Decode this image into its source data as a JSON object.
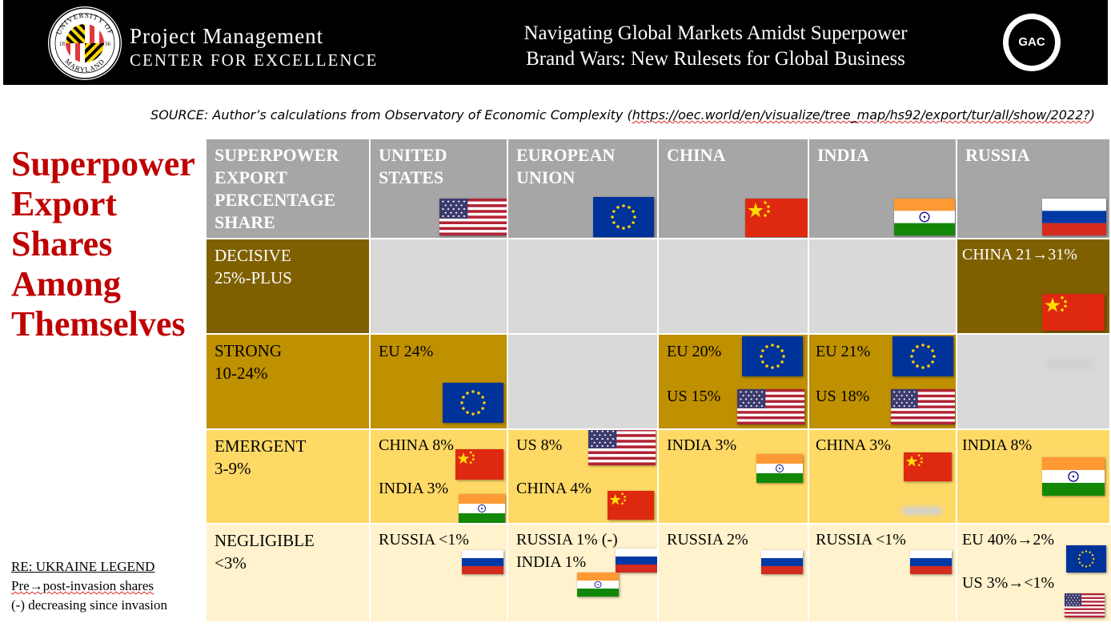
{
  "header": {
    "seal": {
      "top_text": "UNIVERSITY OF",
      "bottom_text": "MARYLAND",
      "year_left": "18",
      "year_right": "56"
    },
    "org_line1": "Project Management",
    "org_line2": "CENTER FOR EXCELLENCE",
    "title_line1": "Navigating Global Markets Amidst Superpower",
    "title_line2": "Brand Wars: New Rulesets for Global Business",
    "badge_text": "GAC",
    "colors": {
      "bar": "#000000",
      "text": "#ffffff"
    }
  },
  "source": {
    "prefix": "SOURCE: Author’s calculations from Observatory of Economic Complexity (",
    "url": "https://oec.world/en/visualize/tree_map/hs92/export/tur/all/show/2022?",
    "suffix": ")"
  },
  "side_title": {
    "lines": [
      "Superpower",
      "Export",
      "Shares",
      "Among",
      "Themselves"
    ],
    "color": "#c00000"
  },
  "legend": {
    "heading": "RE: UKRAINE LEGEND",
    "line1": "Pre→post-invasion shares",
    "line2": "(-) decreasing since invasion"
  },
  "table": {
    "corner_header": "SUPERPOWER EXPORT PERCENTAGE SHARE",
    "columns": [
      {
        "label": "UNITED STATES",
        "flag": "us-flag-icon"
      },
      {
        "label": "EUROPEAN UNION",
        "flag": "eu-flag-icon"
      },
      {
        "label": "CHINA",
        "flag": "china-flag-icon"
      },
      {
        "label": "INDIA",
        "flag": "india-flag-icon"
      },
      {
        "label": "RUSSIA",
        "flag": "russia-flag-icon"
      }
    ],
    "rows": [
      {
        "line1": "DECISIVE",
        "line2": "25%-PLUS",
        "color": "#7f6000",
        "text_color": "#ffffff"
      },
      {
        "line1": "STRONG",
        "line2": "10-24%",
        "color": "#bf9000",
        "text_color": "#000000"
      },
      {
        "line1": "EMERGENT",
        "line2": "3-9%",
        "color": "#ffd966",
        "text_color": "#000000"
      },
      {
        "line1": "NEGLIGIBLE",
        "line2": "<3%",
        "color": "#fff2cc",
        "text_color": "#000000"
      }
    ],
    "cells": {
      "decisive_russia": "CHINA 21→31%",
      "strong_us": "EU 24%",
      "strong_china_1": "EU 20%",
      "strong_china_2": "US 15%",
      "strong_india_1": "EU 21%",
      "strong_india_2": "US 18%",
      "emergent_us_1": "CHINA 8%",
      "emergent_us_2": "INDIA 3%",
      "emergent_eu_1": "US 8%",
      "emergent_eu_2": "CHINA 4%",
      "emergent_china": "INDIA 3%",
      "emergent_india": "CHINA 3%",
      "emergent_russia": "INDIA 8%",
      "negligible_us": "RUSSIA <1%",
      "negligible_eu_1": "RUSSIA 1% (-)",
      "negligible_eu_2": "INDIA 1%",
      "negligible_china": "RUSSIA 2%",
      "negligible_india": "RUSSIA <1%",
      "negligible_russia_1": "EU 40%→2%",
      "negligible_russia_2": "US 3%→<1%"
    },
    "colors": {
      "header": "#a6a6a6",
      "empty": "#d9d9d9"
    }
  }
}
